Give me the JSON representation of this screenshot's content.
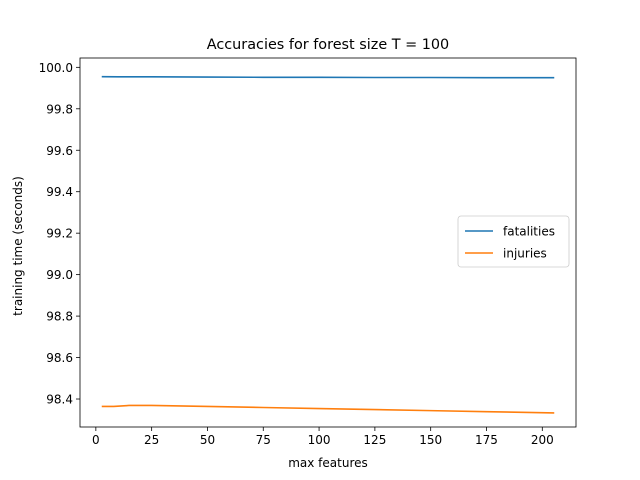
{
  "chart_data": {
    "type": "line",
    "title": "Accuracies for forest size T = 100",
    "xlabel": "max features",
    "ylabel": "training time (seconds)",
    "xlim": [
      -7.1,
      215.1
    ],
    "ylim": [
      98.265,
      100.045
    ],
    "x_ticks": [
      0,
      25,
      50,
      75,
      100,
      125,
      150,
      175,
      200
    ],
    "x_tick_labels": [
      "0",
      "25",
      "50",
      "75",
      "100",
      "125",
      "150",
      "175",
      "200"
    ],
    "y_ticks": [
      98.4,
      98.6,
      98.8,
      99.0,
      99.2,
      99.4,
      99.6,
      99.8,
      100.0
    ],
    "y_tick_labels": [
      "98.4",
      "98.6",
      "98.8",
      "99.0",
      "99.2",
      "99.4",
      "99.6",
      "99.8",
      "100.0"
    ],
    "grid": false,
    "legend_position": "center-right",
    "series": [
      {
        "name": "fatalities",
        "color": "#1f77b4",
        "x": [
          3,
          10,
          25,
          50,
          75,
          100,
          125,
          150,
          175,
          205
        ],
        "y": [
          99.955,
          99.954,
          99.954,
          99.953,
          99.952,
          99.952,
          99.951,
          99.951,
          99.95,
          99.95
        ]
      },
      {
        "name": "injuries",
        "color": "#ff7f0e",
        "x": [
          3,
          8,
          15,
          25,
          50,
          75,
          100,
          125,
          150,
          175,
          205
        ],
        "y": [
          98.364,
          98.364,
          98.369,
          98.369,
          98.364,
          98.359,
          98.354,
          98.349,
          98.344,
          98.339,
          98.333
        ]
      }
    ]
  }
}
